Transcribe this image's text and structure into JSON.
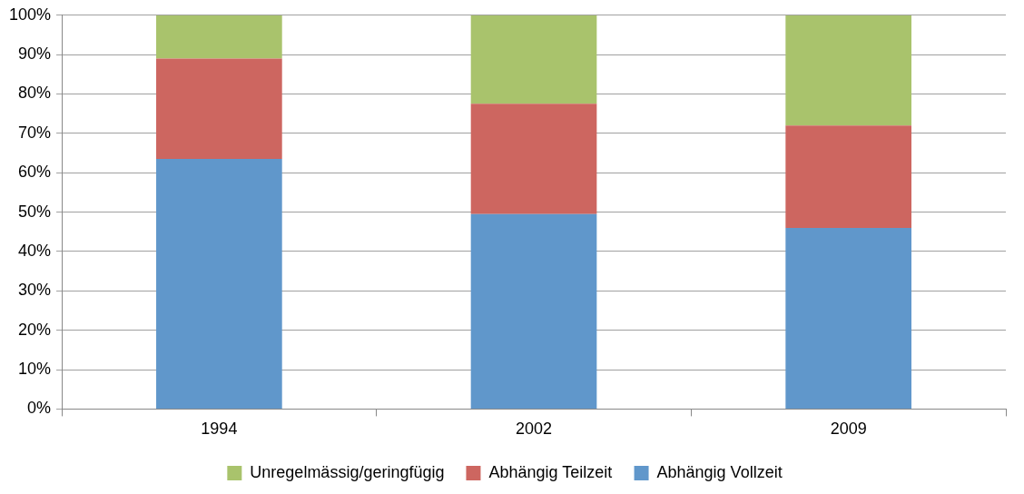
{
  "chart_data": {
    "type": "bar",
    "stacked": true,
    "categories": [
      "1994",
      "2002",
      "2009"
    ],
    "series": [
      {
        "name": "Abhängig Vollzeit",
        "color": "#6097cb",
        "values": [
          63.5,
          49.5,
          46
        ]
      },
      {
        "name": "Abhängig Teilzeit",
        "color": "#cd6660",
        "values": [
          25.5,
          28,
          26
        ]
      },
      {
        "name": "Unregelmässig/geringfügig",
        "color": "#a9c36c",
        "values": [
          11,
          22.5,
          28
        ]
      }
    ],
    "ylim": [
      0,
      100
    ],
    "yticks": [
      {
        "value": 0,
        "label": "0%"
      },
      {
        "value": 10,
        "label": "10%"
      },
      {
        "value": 20,
        "label": "20%"
      },
      {
        "value": 30,
        "label": "30%"
      },
      {
        "value": 40,
        "label": "40%"
      },
      {
        "value": 50,
        "label": "50%"
      },
      {
        "value": 60,
        "label": "60%"
      },
      {
        "value": 70,
        "label": "70%"
      },
      {
        "value": 80,
        "label": "80%"
      },
      {
        "value": 90,
        "label": "90%"
      },
      {
        "value": 100,
        "label": "100%"
      }
    ],
    "grid": "y",
    "legend": "bottom"
  }
}
